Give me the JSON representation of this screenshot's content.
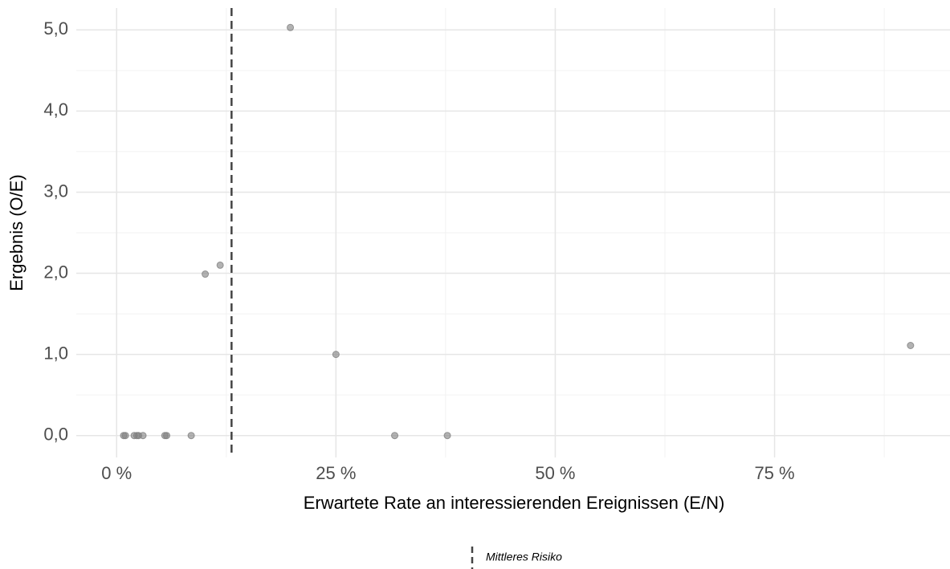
{
  "chart_data": {
    "type": "scatter",
    "x_label": "Erwartete Rate an interessierenden Ereignissen (E/N)",
    "y_label": "Ergebnis (O/E)",
    "x": [
      0.8,
      1.0,
      2.0,
      2.3,
      2.5,
      3.0,
      5.5,
      5.7,
      8.5,
      10.1,
      11.8,
      19.8,
      25.0,
      31.7,
      37.7,
      90.5
    ],
    "y": [
      0,
      0,
      0,
      0,
      0,
      0,
      0,
      0,
      0,
      1.99,
      2.1,
      5.03,
      1.0,
      0,
      0,
      1.11
    ],
    "color": "#7f7f7f",
    "xlim": [
      -4.6,
      95
    ],
    "ylim": [
      -0.27,
      5.27
    ],
    "xticks": [
      {
        "value": 0,
        "label": "0 %"
      },
      {
        "value": 25,
        "label": "25 %"
      },
      {
        "value": 50,
        "label": "50 %"
      },
      {
        "value": 75,
        "label": "75 %"
      }
    ],
    "yticks": [
      {
        "value": 0,
        "label": "0,0"
      },
      {
        "value": 1,
        "label": "1,0"
      },
      {
        "value": 2,
        "label": "2,0"
      },
      {
        "value": 3,
        "label": "3,0"
      },
      {
        "value": 4,
        "label": "4,0"
      },
      {
        "value": 5,
        "label": "5,0"
      }
    ],
    "xminor": [
      12.5,
      37.5,
      62.5,
      87.5
    ],
    "yminor": [
      0.5,
      1.5,
      2.5,
      3.5,
      4.5
    ],
    "grid": true,
    "reference_line": {
      "name": "Mittleres Risiko",
      "x": 13.1,
      "color": "#444444"
    },
    "legend": "bottom"
  }
}
